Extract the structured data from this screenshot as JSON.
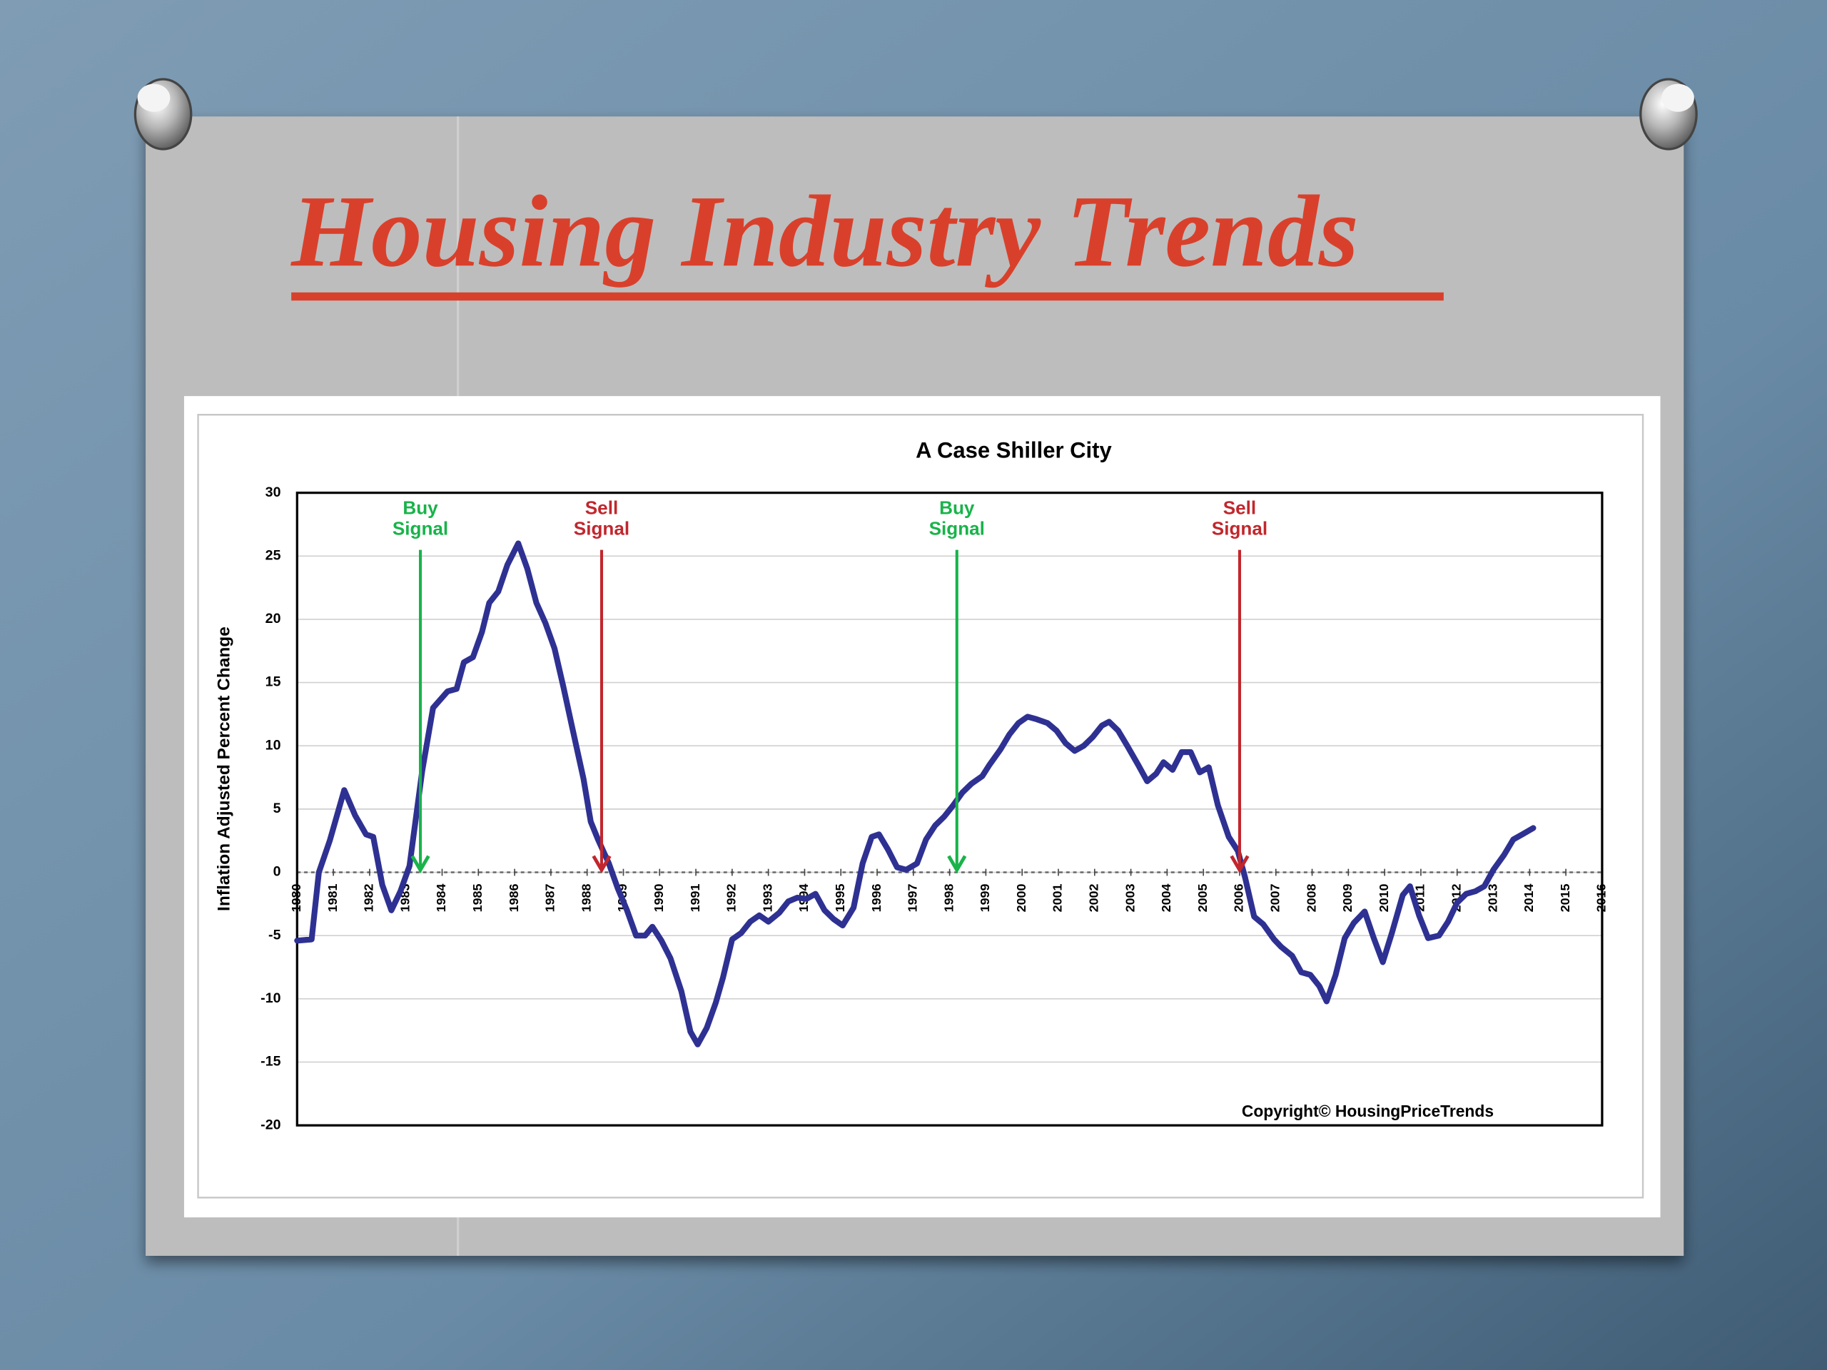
{
  "slide_title": "Housing Industry Trends",
  "chart_data": {
    "type": "line",
    "title": "A Case Shiller City",
    "y_label": "Inflation Adjusted Percent Change",
    "copyright": "Copyright©   HousingPriceTrends",
    "color": "#2e3192",
    "grid": true,
    "xlim": [
      1980,
      2016
    ],
    "xticks": [
      1980,
      1981,
      1982,
      1983,
      1984,
      1985,
      1986,
      1987,
      1988,
      1989,
      1990,
      1991,
      1992,
      1993,
      1994,
      1995,
      1996,
      1997,
      1998,
      1999,
      2000,
      2001,
      2002,
      2003,
      2004,
      2005,
      2006,
      2007,
      2008,
      2009,
      2010,
      2011,
      2012,
      2013,
      2014,
      2015,
      2016
    ],
    "ylim": [
      -20,
      30
    ],
    "yticks": [
      -20,
      -15,
      -10,
      -5,
      0,
      5,
      10,
      15,
      20,
      25,
      30
    ],
    "x": [
      1980,
      1980.4,
      1980.6,
      1980.9,
      1981.3,
      1981.6,
      1981.9,
      1982.1,
      1982.35,
      1982.6,
      1982.85,
      1983.1,
      1983.45,
      1983.75,
      1984.15,
      1984.4,
      1984.6,
      1984.85,
      1985.1,
      1985.3,
      1985.55,
      1985.8,
      1986.1,
      1986.35,
      1986.6,
      1986.85,
      1987.1,
      1987.35,
      1987.6,
      1987.9,
      1988.1,
      1988.3,
      1988.6,
      1988.85,
      1989.1,
      1989.35,
      1989.6,
      1989.8,
      1990.05,
      1990.3,
      1990.6,
      1990.85,
      1991.05,
      1991.3,
      1991.55,
      1991.75,
      1992,
      1992.25,
      1992.5,
      1992.75,
      1993,
      1993.3,
      1993.55,
      1993.8,
      1994.05,
      1994.3,
      1994.55,
      1994.8,
      1995.05,
      1995.35,
      1995.6,
      1995.85,
      1996.05,
      1996.3,
      1996.55,
      1996.8,
      1997.1,
      1997.35,
      1997.6,
      1997.85,
      1998.1,
      1998.35,
      1998.6,
      1998.9,
      1999.1,
      1999.4,
      1999.65,
      1999.9,
      2000.15,
      2000.4,
      2000.7,
      2000.95,
      2001.2,
      2001.45,
      2001.7,
      2001.95,
      2002.2,
      2002.4,
      2002.65,
      2002.9,
      2003.2,
      2003.45,
      2003.7,
      2003.9,
      2004.15,
      2004.4,
      2004.65,
      2004.9,
      2005.15,
      2005.4,
      2005.7,
      2005.95,
      2006.15,
      2006.4,
      2006.65,
      2006.95,
      2007.15,
      2007.45,
      2007.7,
      2007.95,
      2008.2,
      2008.4,
      2008.65,
      2008.9,
      2009.15,
      2009.45,
      2009.7,
      2009.95,
      2010.2,
      2010.5,
      2010.7,
      2010.95,
      2011.2,
      2011.5,
      2011.75,
      2012,
      2012.25,
      2012.5,
      2012.75,
      2013,
      2013.3,
      2013.55,
      2013.8,
      2014.1
    ],
    "values": [
      -5.4,
      -5.3,
      0,
      2.5,
      6.5,
      4.5,
      3,
      2.8,
      -1,
      -3,
      -1.5,
      0.5,
      8,
      13,
      14.3,
      14.5,
      16.6,
      17,
      19,
      21.3,
      22.2,
      24.3,
      26,
      24,
      21.3,
      19.7,
      17.7,
      14.6,
      11.3,
      7.4,
      4,
      2.6,
      0.7,
      -1.3,
      -3,
      -5,
      -5,
      -4.3,
      -5.4,
      -6.8,
      -9.4,
      -12.6,
      -13.6,
      -12.3,
      -10.3,
      -8.3,
      -5.3,
      -4.8,
      -3.9,
      -3.4,
      -3.9,
      -3.2,
      -2.3,
      -2,
      -2.1,
      -1.7,
      -3,
      -3.7,
      -4.2,
      -2.8,
      0.7,
      2.8,
      3,
      1.8,
      0.4,
      0.2,
      0.7,
      2.6,
      3.7,
      4.4,
      5.3,
      6.3,
      7,
      7.6,
      8.5,
      9.7,
      10.9,
      11.8,
      12.3,
      12.1,
      11.8,
      11.2,
      10.2,
      9.6,
      10,
      10.7,
      11.6,
      11.9,
      11.2,
      10,
      8.5,
      7.2,
      7.8,
      8.7,
      8.1,
      9.5,
      9.5,
      7.9,
      8.3,
      5.3,
      2.8,
      1.7,
      -0.4,
      -3.5,
      -4.1,
      -5.3,
      -5.9,
      -6.6,
      -7.9,
      -8.1,
      -9,
      -10.2,
      -8.1,
      -5.2,
      -4,
      -3.1,
      -5.2,
      -7.1,
      -4.8,
      -1.8,
      -1.1,
      -3.4,
      -5.2,
      -5,
      -3.9,
      -2.4,
      -1.7,
      -1.5,
      -1.1,
      0.2,
      1.4,
      2.6,
      3,
      3.5
    ],
    "annotations": [
      {
        "lines": [
          "Buy",
          "Signal"
        ],
        "x": 1983.4,
        "color": "#19b34a"
      },
      {
        "lines": [
          "Sell",
          "Signal"
        ],
        "x": 1988.4,
        "color": "#c1272d"
      },
      {
        "lines": [
          "Buy",
          "Signal"
        ],
        "x": 1998.2,
        "color": "#19b34a"
      },
      {
        "lines": [
          "Sell",
          "Signal"
        ],
        "x": 2006.0,
        "color": "#c1272d"
      }
    ]
  }
}
